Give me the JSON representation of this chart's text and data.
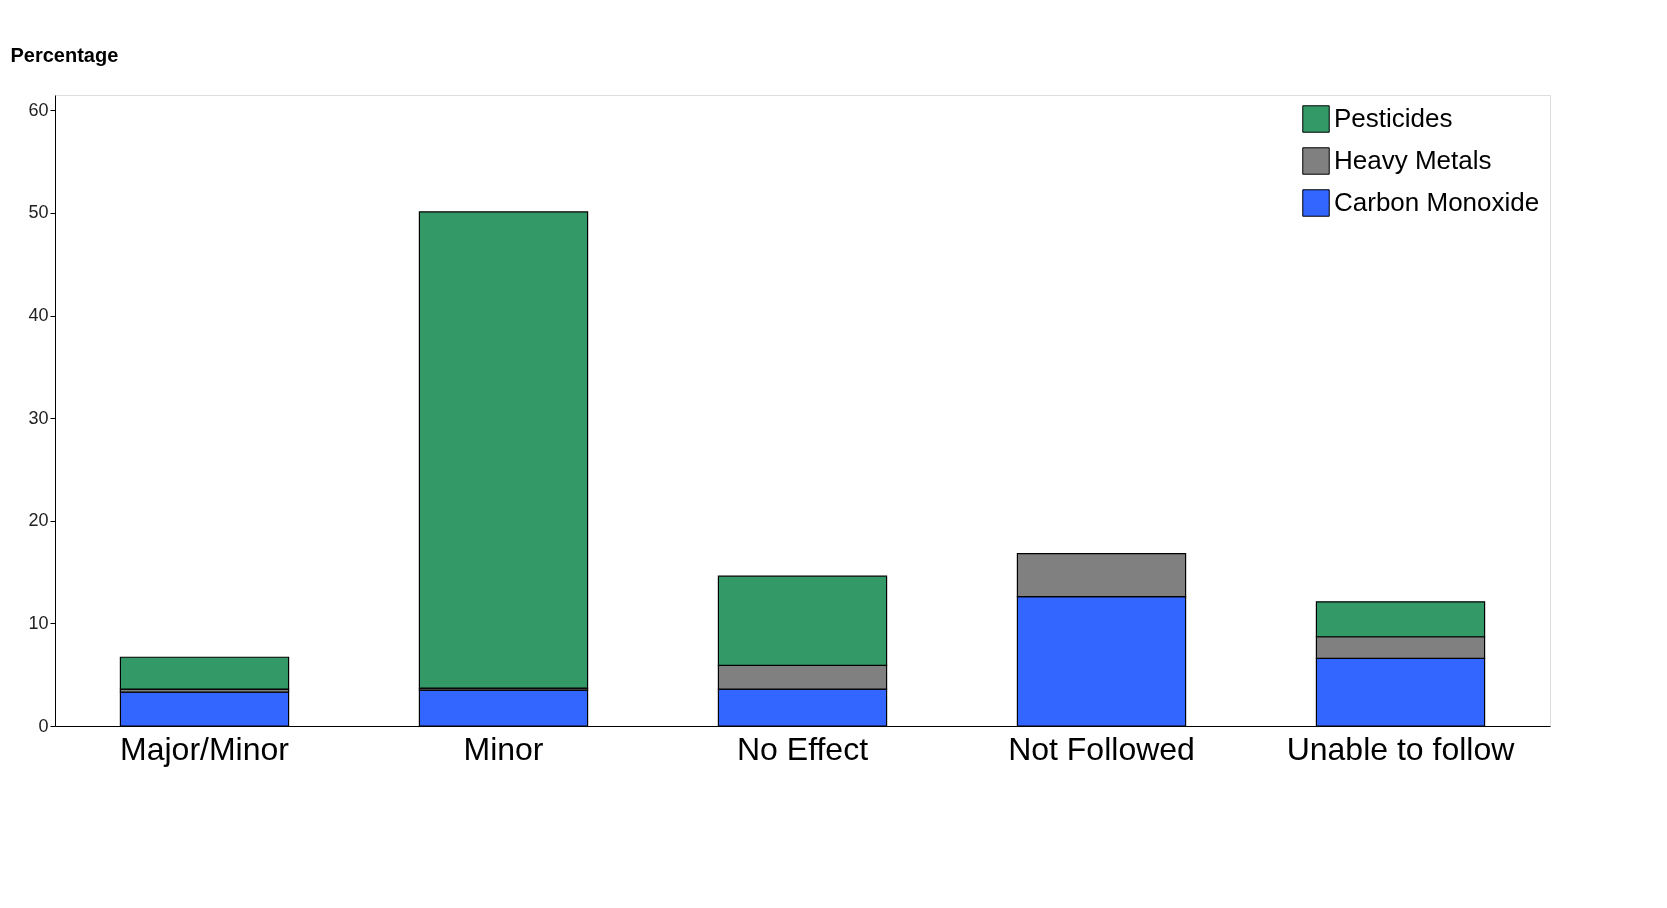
{
  "chart_data": {
    "type": "bar",
    "ylabel": "Percentage",
    "stacked": true,
    "categories": [
      "Major/Minor",
      "Minor",
      "No Effect",
      "Not Followed",
      "Unable to follow"
    ],
    "series": [
      {
        "name": "Carbon Monoxide",
        "color": "#3366ff",
        "values": [
          3.3,
          3.5,
          3.6,
          12.6,
          6.6
        ]
      },
      {
        "name": "Heavy Metals",
        "color": "#808080",
        "values": [
          0.3,
          0.2,
          2.3,
          4.2,
          2.1
        ]
      },
      {
        "name": "Pesticides",
        "color": "#339966",
        "values": [
          3.1,
          46.4,
          8.7,
          null,
          3.4
        ]
      }
    ],
    "ylim": [
      0,
      61.5
    ],
    "yticks": [
      0,
      10,
      20,
      30,
      40,
      50,
      60
    ],
    "grid": false,
    "legend": "top right"
  }
}
